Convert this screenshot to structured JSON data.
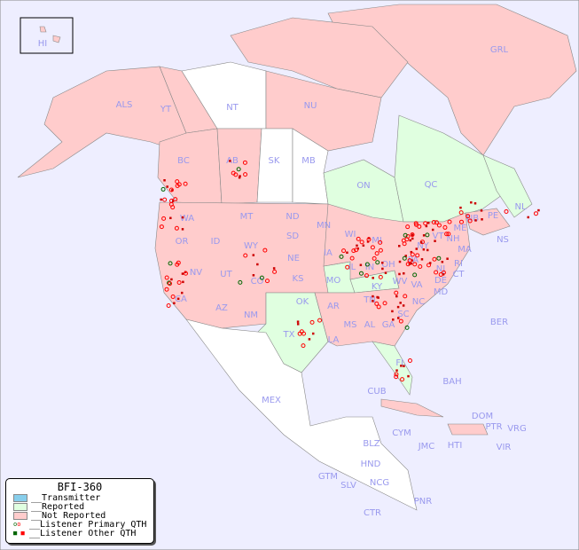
{
  "title": "BFI-360",
  "colors": {
    "background": "#eeeeff",
    "transmitter": "#87ceeb",
    "reported": "#e0ffe0",
    "not_reported": "#ffcccc",
    "unlisted": "#ffffff",
    "label": "#9999ee",
    "primary_qth": "#ff0000",
    "other_qth": "#cc0000"
  },
  "legend": [
    {
      "label": "__Transmitter",
      "type": "swatch",
      "color": "#87ceeb"
    },
    {
      "label": "__Reported",
      "type": "swatch",
      "color": "#e0ffe0"
    },
    {
      "label": "__Not Reported",
      "type": "swatch",
      "color": "#ffcccc"
    },
    {
      "label": "__Listener Primary QTH",
      "type": "circles"
    },
    {
      "label": "__Listener Other QTH",
      "type": "squares"
    }
  ],
  "regions": [
    "HI",
    "ALS",
    "YT",
    "NT",
    "NU",
    "GRL",
    "BC",
    "AB",
    "SK",
    "MB",
    "ON",
    "QC",
    "NL",
    "NB",
    "NS",
    "PE",
    "WA",
    "OR",
    "CA",
    "ID",
    "NV",
    "MT",
    "WY",
    "UT",
    "AZ",
    "CO",
    "NM",
    "ND",
    "SD",
    "NE",
    "KS",
    "OK",
    "TX",
    "MN",
    "IA",
    "MO",
    "AR",
    "LA",
    "WI",
    "IL",
    "MS",
    "MI",
    "IN",
    "KY",
    "TN",
    "AL",
    "GA",
    "FL",
    "OH",
    "WV",
    "VA",
    "NC",
    "SC",
    "PA",
    "NY",
    "VT",
    "NH",
    "ME",
    "MA",
    "CT",
    "RI",
    "NJ",
    "DE",
    "MD",
    "MEX",
    "CUB",
    "BAH",
    "BER",
    "DOM",
    "PTR",
    "VRG",
    "VIR",
    "CYM",
    "JMC",
    "HTI",
    "BLZ",
    "HND",
    "GTM",
    "SLV",
    "NCG",
    "CTR",
    "PNR"
  ]
}
